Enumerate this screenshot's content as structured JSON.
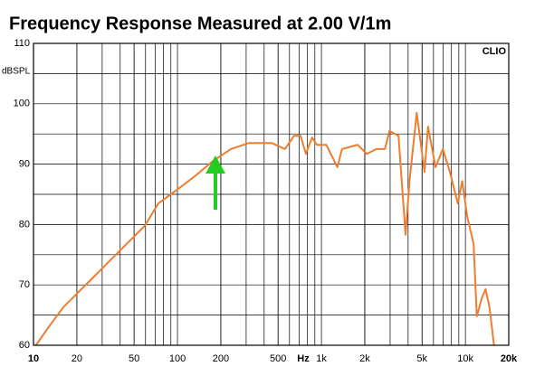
{
  "chart_data": {
    "type": "line",
    "title": "Frequency Response Measured at 2.00 V/1m",
    "y_label": "dBSPL",
    "x_unit_label": "Hz",
    "corner_label": "CLIO",
    "log_x": true,
    "grid": true,
    "xlim": [
      10,
      20000
    ],
    "ylim": [
      60,
      110
    ],
    "xticks": [
      10,
      20,
      50,
      100,
      200,
      500,
      {
        "value": 1000,
        "label": "1k"
      },
      {
        "value": 2000,
        "label": "2k"
      },
      {
        "value": 5000,
        "label": "5k"
      },
      {
        "value": 10000,
        "label": "10k"
      },
      {
        "value": 20000,
        "label": "20k"
      }
    ],
    "yticks": [
      60,
      70,
      80,
      90,
      100,
      110
    ],
    "x": [
      10.4,
      13,
      16.1,
      24.9,
      38.4,
      59.4,
      73.6,
      98.6,
      132,
      176,
      235,
      314,
      450,
      558,
      645,
      716,
      780,
      860,
      930,
      1080,
      1290,
      1390,
      1780,
      2070,
      2410,
      2760,
      2970,
      3430,
      3840,
      4090,
      4590,
      5200,
      5500,
      6200,
      6970,
      7800,
      8850,
      9500,
      10300,
      11400,
      12000,
      13000,
      13800,
      14700,
      15800
    ],
    "series": [
      {
        "color": "#ee7d2f",
        "values": [
          60,
          63.3,
          66.3,
          70.8,
          75.3,
          79.8,
          83.5,
          85.7,
          88.0,
          90.5,
          92.5,
          93.5,
          93.5,
          92.5,
          94.7,
          94.7,
          91.7,
          94.4,
          93.2,
          93.2,
          89.5,
          92.5,
          93.2,
          91.7,
          92.5,
          92.5,
          95.5,
          94.7,
          78.3,
          87.2,
          98.5,
          88.7,
          96.2,
          89.5,
          92.5,
          88.7,
          83.5,
          87.2,
          81.3,
          76.8,
          64.8,
          67.8,
          69.3,
          66.3,
          60
        ]
      }
    ]
  }
}
